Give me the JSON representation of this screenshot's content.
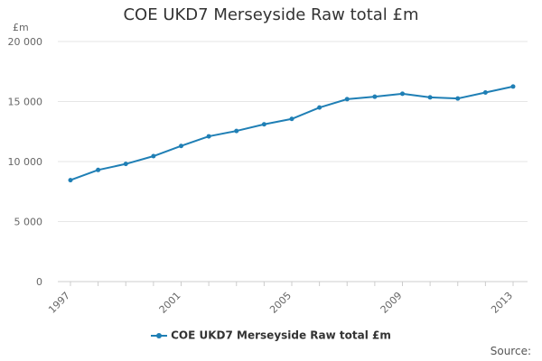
{
  "chart_data": {
    "type": "line",
    "title": "COE UKD7 Merseyside Raw total £m",
    "y_unit_label": "£m",
    "x": [
      1997,
      1998,
      1999,
      2000,
      2001,
      2002,
      2003,
      2004,
      2005,
      2006,
      2007,
      2008,
      2009,
      2010,
      2011,
      2012,
      2013
    ],
    "x_tick_labels": [
      "1997",
      "2001",
      "2005",
      "2009",
      "2013"
    ],
    "y_tick_labels": [
      "0",
      "5 000",
      "10 000",
      "15 000",
      "20 000"
    ],
    "y_ticks": [
      0,
      5000,
      10000,
      15000,
      20000
    ],
    "ylim": [
      0,
      20000
    ],
    "grid": true,
    "legend_position": "bottom",
    "series": [
      {
        "name": "COE UKD7 Merseyside Raw total £m",
        "color": "#1f7fb5",
        "values": [
          8450,
          9300,
          9800,
          10450,
          11300,
          12100,
          12550,
          13100,
          13550,
          14500,
          15200,
          15400,
          15650,
          15350,
          15250,
          15750,
          16250
        ]
      }
    ]
  },
  "footer": {
    "source_label": "Source:"
  }
}
